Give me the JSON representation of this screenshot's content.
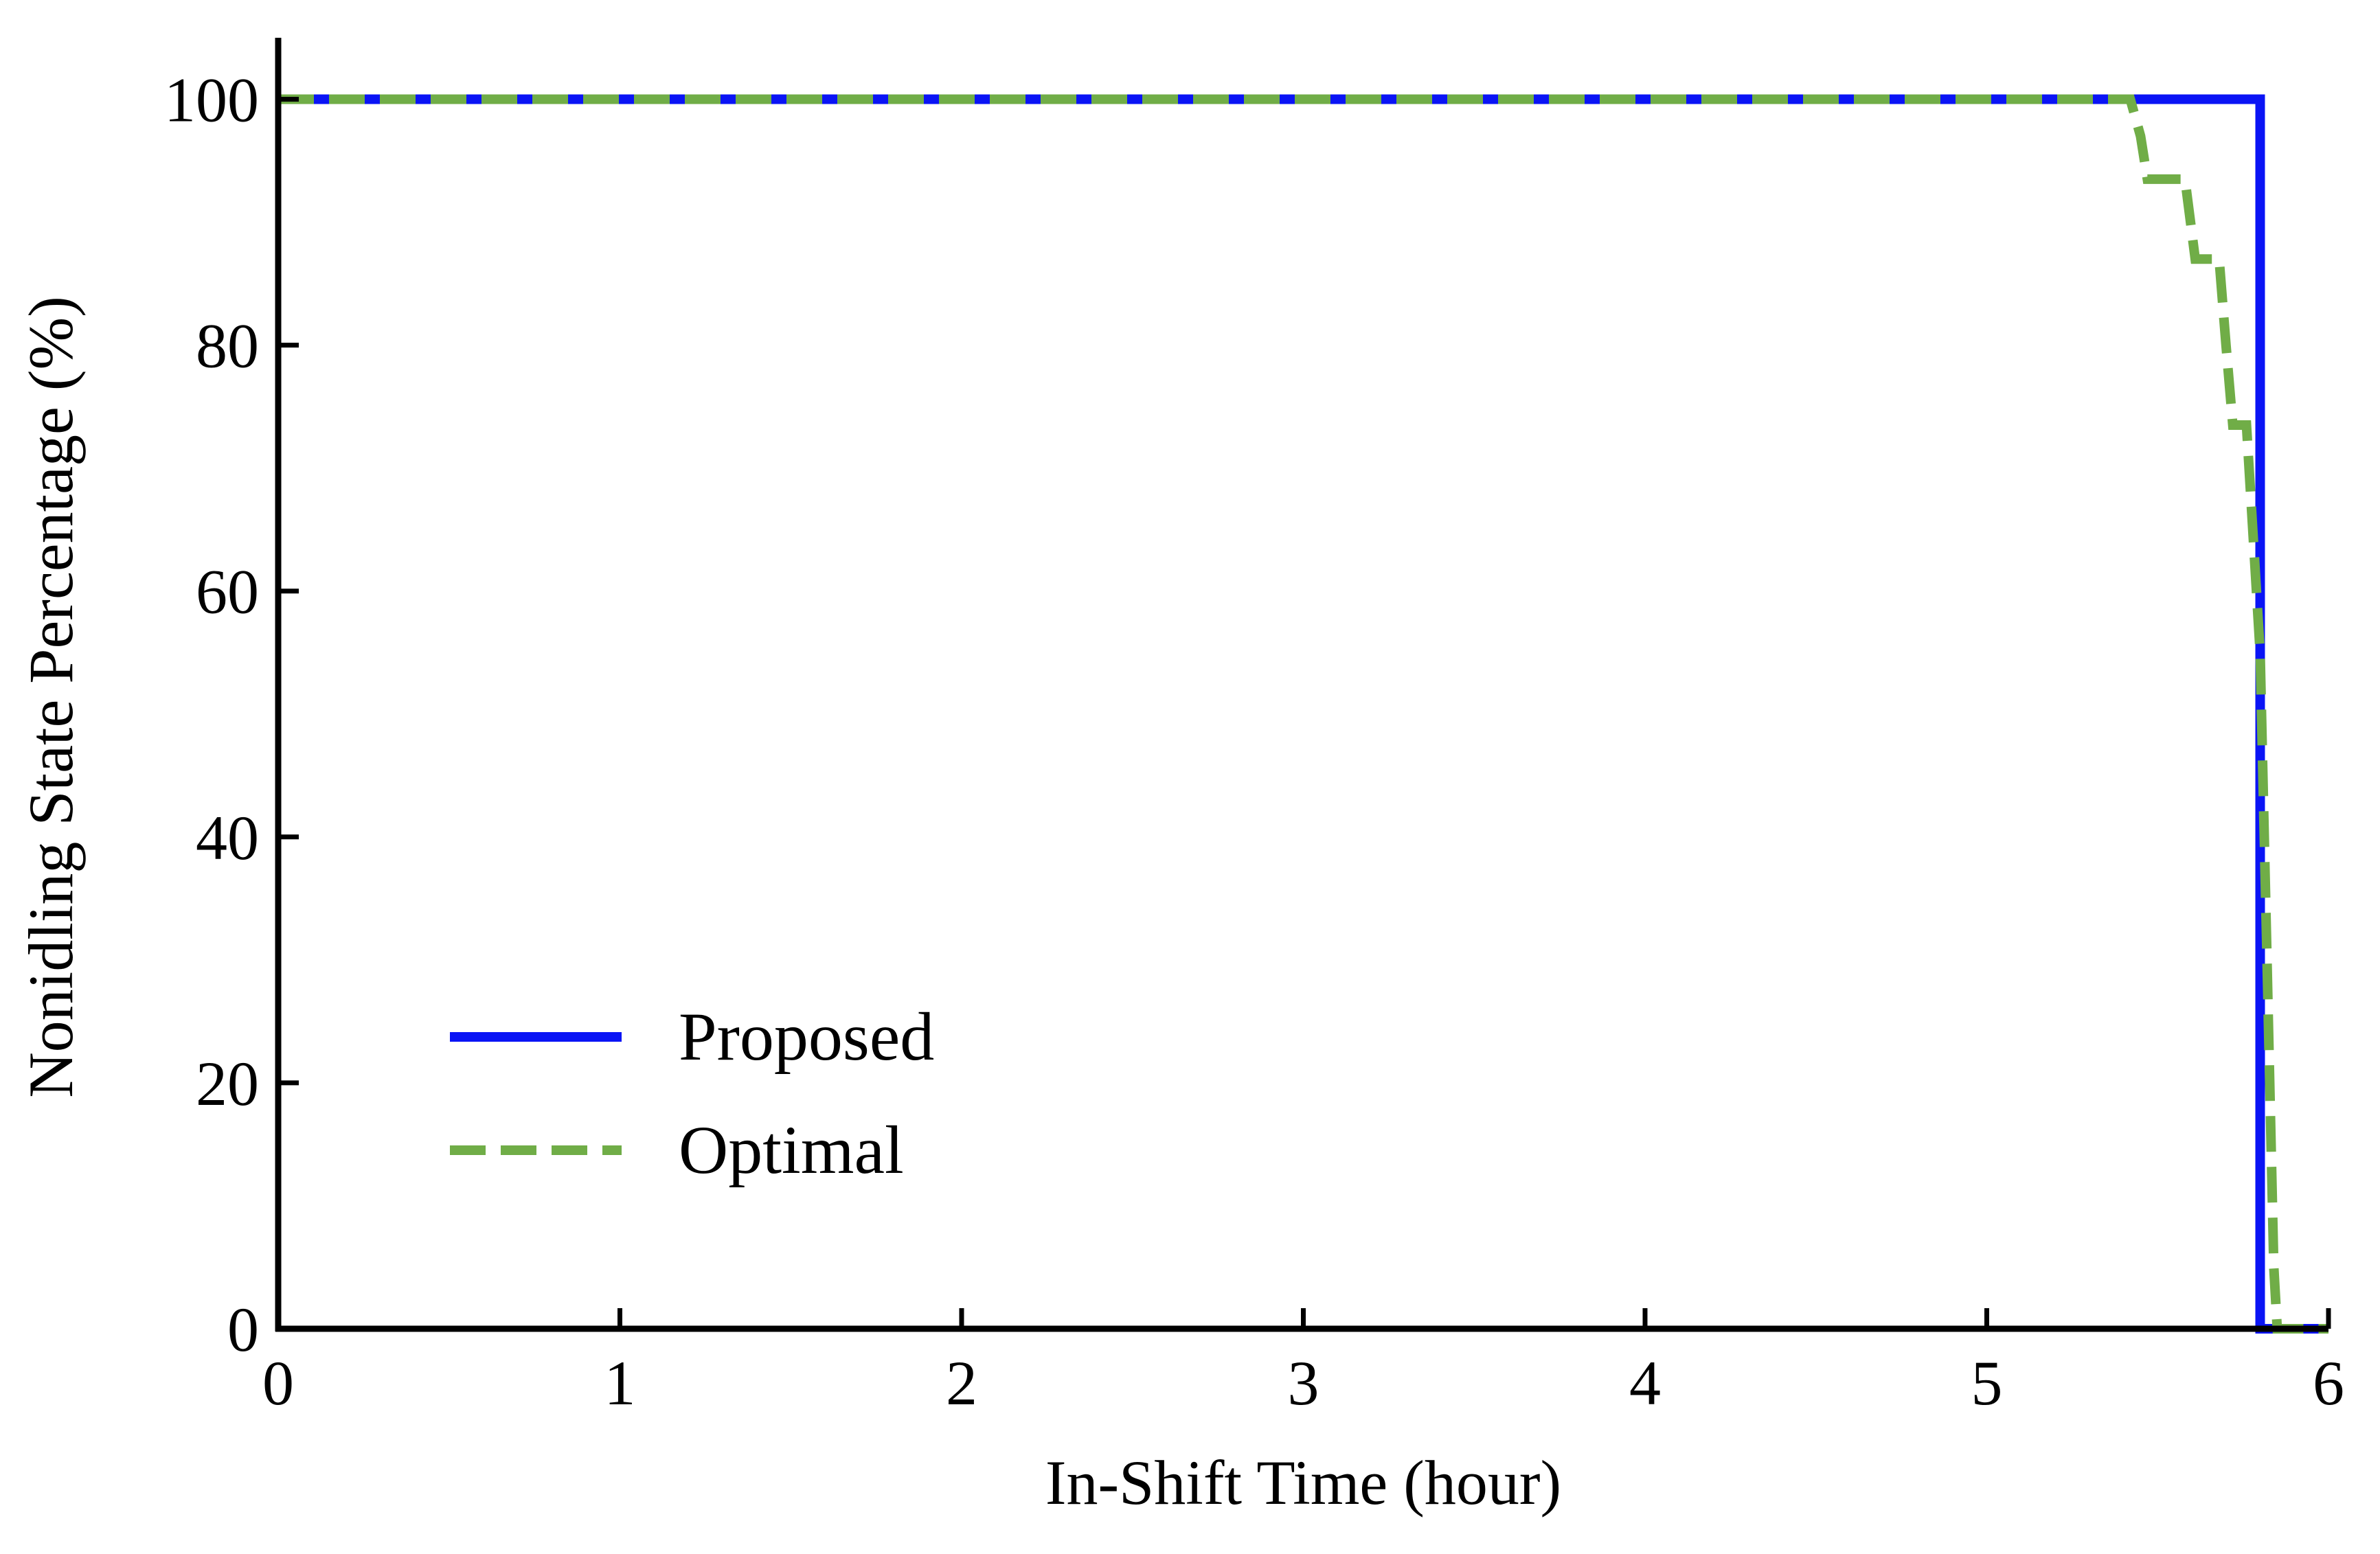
{
  "chart_data": {
    "type": "line",
    "title": "",
    "xlabel": "In-Shift Time (hour)",
    "ylabel": "Nonidling State Percentage (%)",
    "xlim": [
      0,
      6
    ],
    "ylim": [
      0,
      105
    ],
    "xticks": [
      0,
      1,
      2,
      3,
      4,
      5,
      6
    ],
    "yticks": [
      0,
      20,
      40,
      60,
      80,
      100
    ],
    "xtick_labels": [
      "0",
      "1",
      "2",
      "3",
      "4",
      "5",
      "6"
    ],
    "ytick_labels": [
      "0",
      "20",
      "40",
      "60",
      "80",
      "100"
    ],
    "grid": false,
    "legend_position": "lower-left",
    "series": [
      {
        "name": "Proposed",
        "color": "#0a14f5",
        "style": "solid",
        "points": [
          [
            0,
            100
          ],
          [
            5.8,
            100
          ],
          [
            5.8,
            0
          ],
          [
            6,
            0
          ]
        ]
      },
      {
        "name": "Optimal",
        "color": "#70ad47",
        "style": "dashed",
        "points": [
          [
            0,
            100
          ],
          [
            5.42,
            100
          ],
          [
            5.45,
            97
          ],
          [
            5.47,
            93.5
          ],
          [
            5.58,
            93.5
          ],
          [
            5.61,
            87
          ],
          [
            5.68,
            87
          ],
          [
            5.7,
            80
          ],
          [
            5.72,
            73.5
          ],
          [
            5.76,
            73.5
          ],
          [
            5.8,
            55
          ],
          [
            5.82,
            30
          ],
          [
            5.84,
            5
          ],
          [
            5.85,
            0
          ],
          [
            6,
            0
          ]
        ]
      }
    ]
  }
}
